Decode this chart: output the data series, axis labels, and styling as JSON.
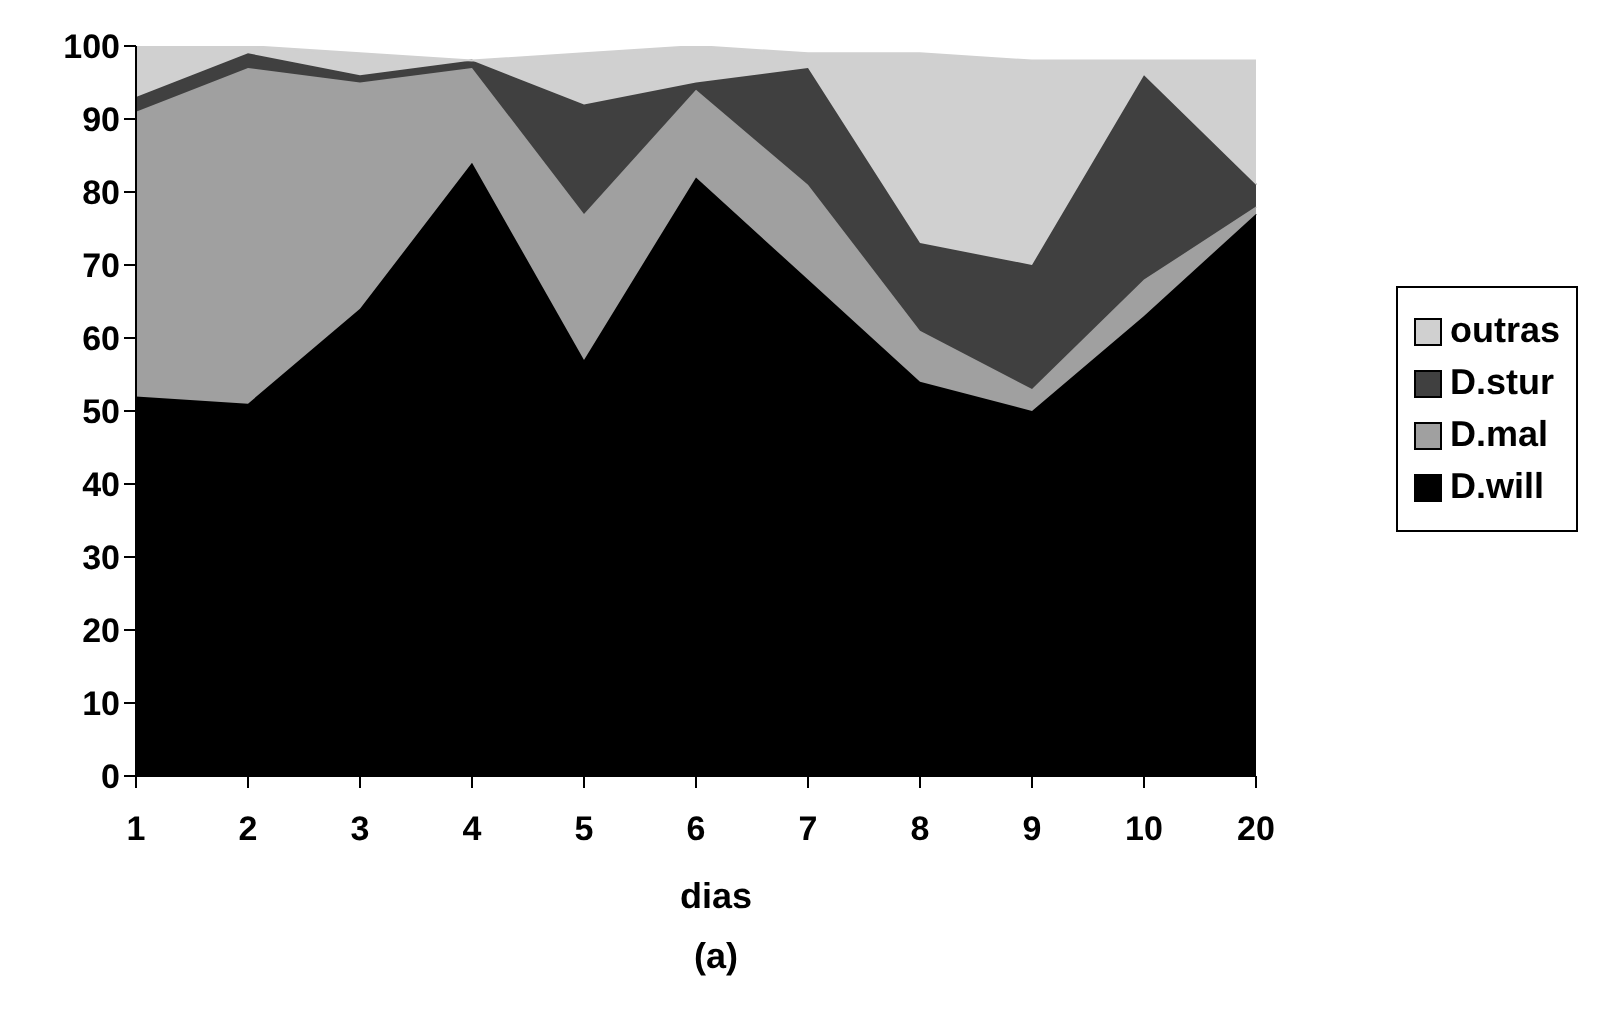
{
  "chart_data": {
    "type": "area",
    "stacked": true,
    "xlabel": "dias",
    "annotations": [
      "(a)"
    ],
    "categories": [
      "1",
      "2",
      "3",
      "4",
      "5",
      "6",
      "7",
      "8",
      "9",
      "10",
      "20"
    ],
    "series": [
      {
        "name": "D.will",
        "color": "#000000",
        "values": [
          52,
          51,
          64,
          84,
          57,
          82,
          68,
          54,
          50,
          63,
          77
        ]
      },
      {
        "name": "D.mal",
        "color": "#a0a0a0",
        "values": [
          39,
          46,
          31,
          13,
          20,
          12,
          13,
          7,
          3,
          5,
          1
        ]
      },
      {
        "name": "D.stur",
        "color": "#404040",
        "values": [
          2,
          2,
          1,
          1,
          15,
          1,
          16,
          12,
          17,
          28,
          3
        ]
      },
      {
        "name": "outras",
        "color": "#d0d0d0",
        "values": [
          7,
          1,
          3,
          0,
          7,
          5,
          2,
          26,
          28,
          2,
          17
        ]
      }
    ],
    "ylim": [
      0,
      100
    ],
    "yticks": [
      0,
      10,
      20,
      30,
      40,
      50,
      60,
      70,
      80,
      90,
      100
    ],
    "grid": false,
    "legend": "right"
  }
}
